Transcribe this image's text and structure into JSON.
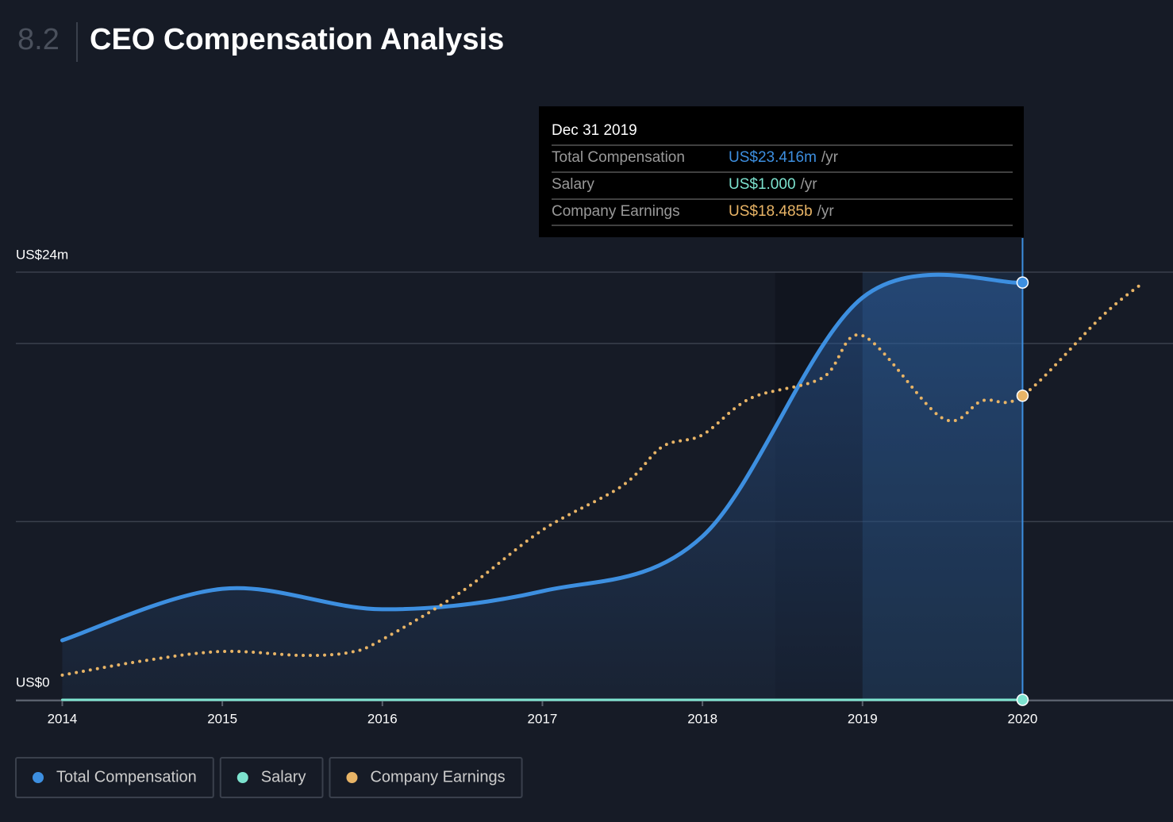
{
  "header": {
    "score": "8.2",
    "title": "CEO Compensation Analysis"
  },
  "chart_data": {
    "type": "line",
    "x": [
      2014,
      2015,
      2016,
      2017,
      2018,
      2019,
      2020
    ],
    "xlim": [
      2013.71,
      2020.94
    ],
    "xticks": [
      2014,
      2015,
      2016,
      2017,
      2018,
      2019,
      2020
    ],
    "ylim": [
      0,
      24
    ],
    "yticks": [
      {
        "value": 0,
        "label": "US$0"
      },
      {
        "value": 10,
        "label": null
      },
      {
        "value": 20,
        "label": null
      },
      {
        "value": 24,
        "label": "US$24m"
      }
    ],
    "y2lim": [
      0,
      26
    ],
    "grid": true,
    "highlight": [
      2019,
      2020
    ],
    "series": [
      {
        "name": "Total Compensation",
        "color": "#3d8fe0",
        "values": [
          3.34,
          6.23,
          5.08,
          6.1,
          9.17,
          22.57,
          23.416
        ]
      },
      {
        "name": "Salary",
        "color": "#7de3cf",
        "values": [
          1e-06,
          1e-06,
          1e-06,
          1e-06,
          1e-06,
          1e-06,
          1e-06
        ]
      },
      {
        "name": "Company Earnings",
        "color": "#e8b466",
        "axis": "y2",
        "x": [
          2014,
          2014.5,
          2015,
          2015.5,
          2015.8,
          2016,
          2016.5,
          2017,
          2017.5,
          2017.75,
          2018,
          2018.3,
          2018.75,
          2019,
          2019.5,
          2019.75,
          2020,
          2020.5,
          2020.75
        ],
        "values": [
          1.5,
          2.36,
          2.94,
          2.7,
          2.89,
          3.67,
          6.61,
          10.32,
          13.02,
          15.39,
          16.11,
          18.33,
          19.58,
          22.14,
          17.12,
          18.19,
          18.485,
          23.35,
          25.33
        ]
      }
    ],
    "tooltip": {
      "date": "Dec 31 2019",
      "value_labels": [
        "US$23.416m",
        "US$1.000",
        "US$18.485b"
      ],
      "unit": "/yr"
    }
  }
}
